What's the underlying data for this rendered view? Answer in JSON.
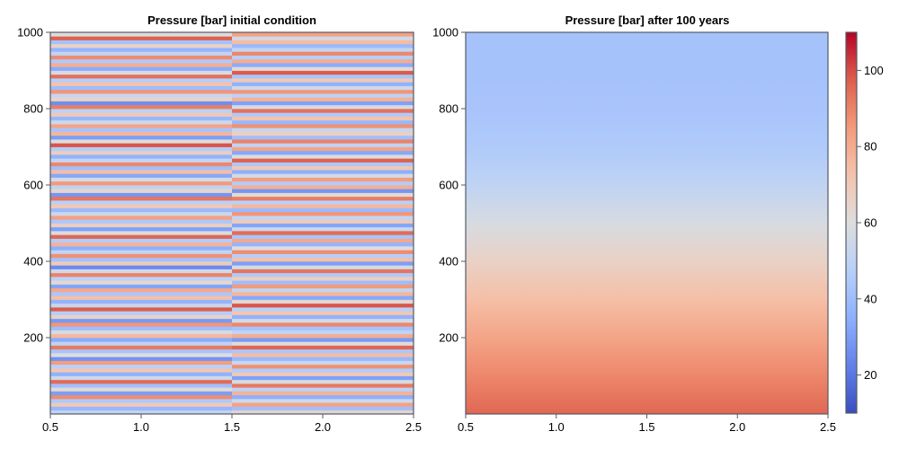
{
  "chart_data": [
    {
      "type": "heatmap",
      "title": "Pressure [bar] initial condition",
      "xlabel": "",
      "ylabel": "",
      "xlim": [
        0.5,
        2.5
      ],
      "ylim": [
        0,
        1000
      ],
      "xticks": [
        "0.5",
        "1.0",
        "1.5",
        "2.0",
        "2.5"
      ],
      "yticks": [
        "200",
        "400",
        "600",
        "800",
        "1000"
      ],
      "xtick_values": [
        0.5,
        1.0,
        1.5,
        2.0,
        2.5
      ],
      "ytick_values": [
        200,
        400,
        600,
        800,
        1000
      ],
      "columns": [
        1,
        2
      ],
      "rows": 100,
      "colormap": "coolwarm",
      "color_range": [
        10,
        110
      ],
      "column_values": [
        [
          52,
          38,
          70,
          45,
          88,
          30,
          62,
          41,
          95,
          55,
          36,
          72,
          48,
          84,
          27,
          60,
          43,
          92,
          50,
          34,
          76,
          58,
          40,
          86,
          29,
          66,
          47,
          98,
          53,
          37,
          74,
          44,
          81,
          32,
          63,
          49,
          90,
          56,
          25,
          69,
          42,
          87,
          51,
          35,
          78,
          46,
          96,
          59,
          31,
          67,
          44,
          83,
          54,
          39,
          71,
          48,
          93,
          28,
          64,
          50,
          85,
          57,
          33,
          75,
          41,
          89,
          52,
          36,
          68,
          46,
          99,
          61,
          30,
          77,
          43,
          82,
          55,
          38,
          70,
          49,
          91,
          26,
          65,
          53,
          86,
          40,
          73,
          47,
          94,
          58,
          34,
          79,
          45,
          88,
          51,
          37,
          66,
          42,
          97,
          60
        ],
        [
          64,
          41,
          83,
          55,
          35,
          78,
          49,
          92,
          58,
          31,
          70,
          46,
          87,
          53,
          38,
          75,
          44,
          96,
          61,
          29,
          80,
          50,
          42,
          89,
          57,
          36,
          72,
          48,
          99,
          63,
          33,
          77,
          52,
          85,
          40,
          68,
          45,
          93,
          56,
          30,
          74,
          47,
          88,
          60,
          37,
          81,
          43,
          95,
          54,
          32,
          69,
          51,
          86,
          39,
          76,
          48,
          91,
          62,
          28,
          79,
          46,
          84,
          57,
          35,
          71,
          44,
          97,
          59,
          33,
          82,
          50,
          90,
          41,
          67,
          53,
          87,
          38,
          73,
          45,
          94,
          58,
          31,
          78,
          49,
          86,
          55,
          36,
          70,
          43,
          98,
          61,
          34,
          80,
          47,
          89,
          52,
          39,
          75,
          56,
          83
        ]
      ]
    },
    {
      "type": "heatmap",
      "title": "Pressure [bar] after 100 years",
      "xlabel": "",
      "ylabel": "",
      "xlim": [
        0.5,
        2.5
      ],
      "ylim": [
        0,
        1000
      ],
      "xticks": [
        "0.5",
        "1.0",
        "1.5",
        "2.0",
        "2.5"
      ],
      "yticks": [
        "200",
        "400",
        "600",
        "800",
        "1000"
      ],
      "xtick_values": [
        0.5,
        1.0,
        1.5,
        2.0,
        2.5
      ],
      "ytick_values": [
        200,
        400,
        600,
        800,
        1000
      ],
      "colormap": "coolwarm",
      "color_range": [
        10,
        110
      ],
      "profile_depth": [
        0,
        100,
        200,
        300,
        400,
        500,
        600,
        700,
        800,
        900,
        1000
      ],
      "profile_values": [
        96,
        89,
        82,
        74,
        66,
        58,
        50,
        45,
        43,
        42,
        42
      ]
    }
  ],
  "colorbar": {
    "range": [
      10,
      110
    ],
    "ticks": [
      "20",
      "40",
      "60",
      "80",
      "100"
    ],
    "tick_values": [
      20,
      40,
      60,
      80,
      100
    ],
    "colormap": "coolwarm"
  }
}
